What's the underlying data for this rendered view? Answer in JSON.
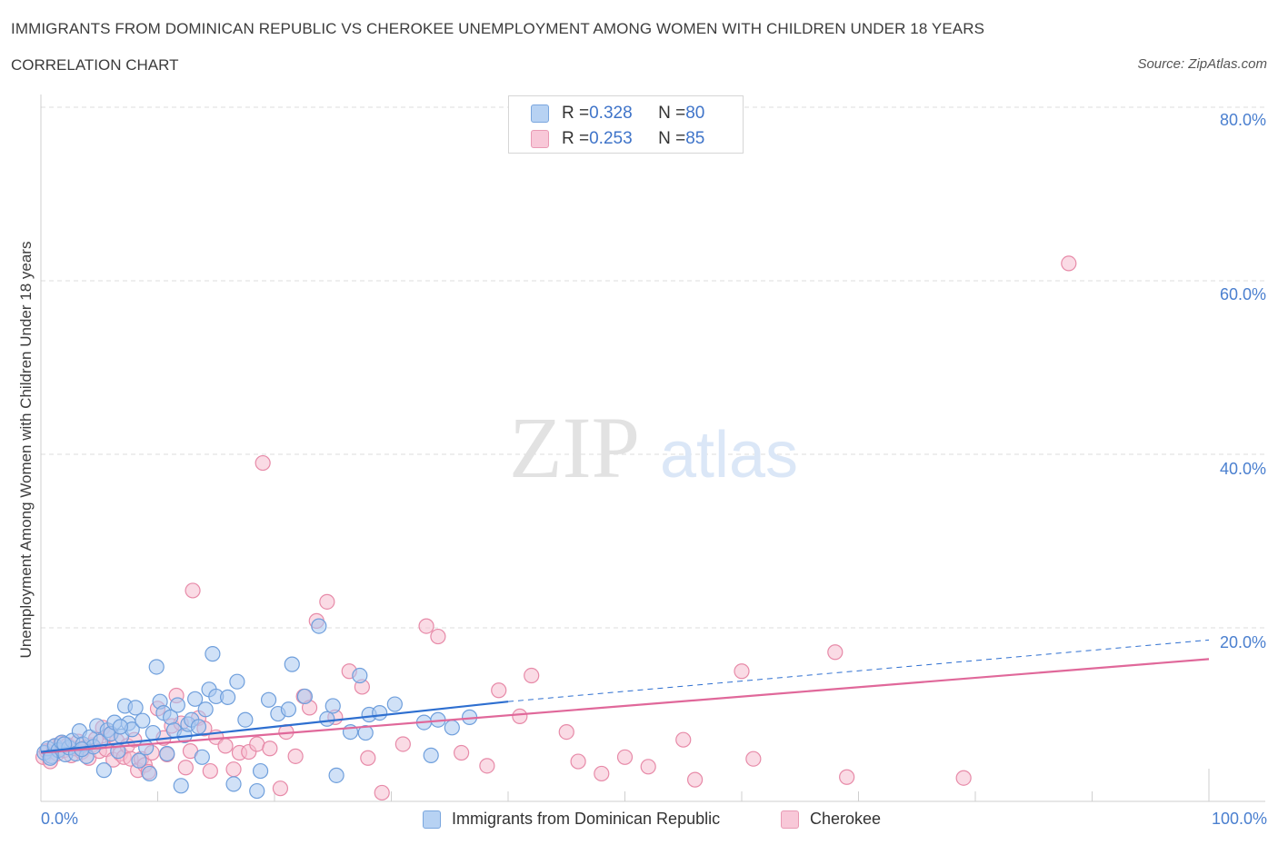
{
  "header": {
    "title": "IMMIGRANTS FROM DOMINICAN REPUBLIC VS CHEROKEE UNEMPLOYMENT AMONG WOMEN WITH CHILDREN UNDER 18 YEARS",
    "subtitle": "CORRELATION CHART",
    "source": "Source: ZipAtlas.com"
  },
  "watermark": {
    "zip": "ZIP",
    "atlas": "atlas"
  },
  "legend": {
    "rows": [
      {
        "r_label": "R = ",
        "r_value": "0.328",
        "n_label": "N = ",
        "n_value": "80"
      },
      {
        "r_label": "R = ",
        "r_value": "0.253",
        "n_label": "N = ",
        "n_value": "85"
      }
    ]
  },
  "colors": {
    "blue_fill": "#a9c8f0",
    "blue_stroke": "#6f9fdc",
    "blue_line": "#2e6fd0",
    "pink_fill": "#f6bdd0",
    "pink_stroke": "#e78aa8",
    "pink_line": "#e0689a",
    "tick_text": "#4a7fcf",
    "grid": "#dddddd"
  },
  "chart_data": {
    "type": "scatter",
    "title": "IMMIGRANTS FROM DOMINICAN REPUBLIC VS CHEROKEE UNEMPLOYMENT AMONG WOMEN WITH CHILDREN UNDER 18 YEARS",
    "subtitle": "CORRELATION CHART",
    "xlabel": "",
    "ylabel": "Unemployment Among Women with Children Under 18 years",
    "xlim": [
      0,
      100
    ],
    "ylim": [
      0,
      80
    ],
    "x_tick_labels": [
      "0.0%",
      "100.0%"
    ],
    "y_ticks": [
      20,
      40,
      60,
      80
    ],
    "y_tick_labels": [
      "20.0%",
      "40.0%",
      "60.0%",
      "80.0%"
    ],
    "grid": true,
    "legend_position": "top-center",
    "series": [
      {
        "name": "Immigrants from Dominican Republic",
        "color": "#a9c8f0",
        "r": 0.328,
        "n": 80,
        "trend": {
          "x0": 0,
          "y0": 5.7,
          "x1": 40,
          "y1": 11.5,
          "dashed_to_x": 100,
          "dashed_to_y": 18.6
        },
        "points": [
          [
            0.3,
            5.6
          ],
          [
            0.6,
            6.1
          ],
          [
            0.9,
            5.2
          ],
          [
            1.2,
            6.4
          ],
          [
            1.5,
            5.9
          ],
          [
            1.8,
            6.8
          ],
          [
            2.1,
            5.4
          ],
          [
            2.4,
            6.2
          ],
          [
            2.7,
            7.0
          ],
          [
            3.0,
            5.5
          ],
          [
            3.3,
            8.1
          ],
          [
            3.6,
            6.6
          ],
          [
            3.9,
            5.2
          ],
          [
            4.2,
            7.4
          ],
          [
            4.5,
            6.3
          ],
          [
            4.8,
            8.7
          ],
          [
            5.1,
            6.9
          ],
          [
            5.4,
            3.6
          ],
          [
            5.7,
            8.2
          ],
          [
            6.0,
            7.8
          ],
          [
            6.3,
            9.1
          ],
          [
            6.6,
            5.8
          ],
          [
            6.9,
            7.5
          ],
          [
            7.2,
            11.0
          ],
          [
            7.5,
            9.0
          ],
          [
            7.8,
            8.3
          ],
          [
            8.1,
            10.8
          ],
          [
            8.4,
            4.7
          ],
          [
            8.7,
            9.3
          ],
          [
            9.0,
            6.2
          ],
          [
            9.3,
            3.2
          ],
          [
            9.6,
            7.9
          ],
          [
            9.9,
            15.5
          ],
          [
            10.2,
            11.5
          ],
          [
            10.5,
            10.2
          ],
          [
            10.8,
            5.5
          ],
          [
            11.1,
            9.7
          ],
          [
            11.4,
            8.2
          ],
          [
            11.7,
            11.1
          ],
          [
            12.0,
            1.8
          ],
          [
            12.3,
            7.6
          ],
          [
            12.6,
            8.9
          ],
          [
            12.9,
            9.4
          ],
          [
            13.2,
            11.8
          ],
          [
            13.5,
            8.6
          ],
          [
            13.8,
            5.1
          ],
          [
            14.1,
            10.6
          ],
          [
            14.4,
            12.9
          ],
          [
            14.7,
            17.0
          ],
          [
            15.0,
            12.1
          ],
          [
            16.0,
            12.0
          ],
          [
            16.5,
            2.0
          ],
          [
            16.8,
            13.8
          ],
          [
            17.5,
            9.4
          ],
          [
            18.5,
            1.2
          ],
          [
            18.8,
            3.5
          ],
          [
            19.5,
            11.7
          ],
          [
            20.3,
            10.1
          ],
          [
            21.2,
            10.6
          ],
          [
            21.5,
            15.8
          ],
          [
            22.6,
            12.1
          ],
          [
            23.8,
            20.2
          ],
          [
            24.5,
            9.5
          ],
          [
            25.0,
            11.0
          ],
          [
            25.3,
            3.0
          ],
          [
            26.5,
            8.0
          ],
          [
            27.3,
            14.5
          ],
          [
            27.8,
            7.9
          ],
          [
            28.1,
            10.0
          ],
          [
            29.0,
            10.2
          ],
          [
            30.3,
            11.2
          ],
          [
            32.8,
            9.1
          ],
          [
            33.4,
            5.3
          ],
          [
            34.0,
            9.4
          ],
          [
            35.2,
            8.5
          ],
          [
            36.7,
            9.7
          ],
          [
            0.8,
            5.0
          ],
          [
            2.0,
            6.6
          ],
          [
            3.5,
            6.0
          ],
          [
            6.8,
            8.6
          ]
        ]
      },
      {
        "name": "Cherokee",
        "color": "#f6bdd0",
        "r": 0.253,
        "n": 85,
        "trend": {
          "x0": 0,
          "y0": 5.6,
          "x1": 100,
          "y1": 16.4
        },
        "points": [
          [
            0.2,
            5.1
          ],
          [
            0.5,
            5.8
          ],
          [
            0.8,
            4.6
          ],
          [
            1.1,
            6.3
          ],
          [
            1.4,
            5.5
          ],
          [
            1.7,
            6.7
          ],
          [
            2.0,
            5.9
          ],
          [
            2.3,
            6.5
          ],
          [
            2.6,
            5.3
          ],
          [
            2.9,
            6.1
          ],
          [
            3.2,
            6.9
          ],
          [
            3.5,
            5.7
          ],
          [
            3.8,
            6.2
          ],
          [
            4.1,
            5.0
          ],
          [
            4.4,
            6.5
          ],
          [
            4.7,
            7.2
          ],
          [
            5.0,
            5.8
          ],
          [
            5.3,
            8.5
          ],
          [
            5.6,
            6.0
          ],
          [
            5.9,
            7.7
          ],
          [
            6.2,
            4.8
          ],
          [
            6.5,
            7.0
          ],
          [
            6.8,
            5.5
          ],
          [
            7.1,
            5.1
          ],
          [
            7.4,
            6.4
          ],
          [
            7.7,
            4.9
          ],
          [
            8.0,
            7.1
          ],
          [
            8.3,
            3.6
          ],
          [
            8.6,
            4.9
          ],
          [
            8.9,
            4.2
          ],
          [
            9.2,
            3.4
          ],
          [
            9.5,
            5.6
          ],
          [
            10.0,
            10.7
          ],
          [
            10.5,
            7.3
          ],
          [
            10.8,
            5.4
          ],
          [
            11.2,
            8.7
          ],
          [
            11.6,
            12.2
          ],
          [
            12.0,
            9.0
          ],
          [
            12.4,
            3.9
          ],
          [
            12.8,
            5.8
          ],
          [
            13.0,
            24.3
          ],
          [
            13.5,
            9.6
          ],
          [
            14.0,
            8.4
          ],
          [
            14.5,
            3.5
          ],
          [
            15.0,
            7.4
          ],
          [
            15.8,
            6.4
          ],
          [
            16.5,
            3.7
          ],
          [
            17.0,
            5.6
          ],
          [
            17.8,
            5.7
          ],
          [
            18.5,
            6.6
          ],
          [
            19.0,
            39.0
          ],
          [
            19.6,
            6.1
          ],
          [
            20.5,
            1.5
          ],
          [
            21.0,
            8.0
          ],
          [
            21.8,
            5.2
          ],
          [
            22.5,
            12.1
          ],
          [
            23.0,
            10.8
          ],
          [
            23.6,
            20.8
          ],
          [
            24.5,
            23.0
          ],
          [
            25.2,
            9.7
          ],
          [
            26.4,
            15.0
          ],
          [
            27.5,
            13.2
          ],
          [
            28.0,
            5.0
          ],
          [
            29.2,
            1.0
          ],
          [
            31.0,
            6.6
          ],
          [
            33.0,
            20.2
          ],
          [
            34.0,
            19.0
          ],
          [
            36.0,
            5.6
          ],
          [
            38.2,
            4.1
          ],
          [
            39.2,
            12.8
          ],
          [
            41.0,
            9.8
          ],
          [
            42.0,
            14.5
          ],
          [
            45.0,
            8.0
          ],
          [
            46.0,
            4.6
          ],
          [
            48.0,
            3.2
          ],
          [
            50.0,
            5.1
          ],
          [
            52.0,
            4.0
          ],
          [
            55.0,
            7.1
          ],
          [
            56.0,
            2.5
          ],
          [
            60.0,
            15.0
          ],
          [
            61.0,
            4.9
          ],
          [
            68.0,
            17.2
          ],
          [
            69.0,
            2.8
          ],
          [
            79.0,
            2.7
          ],
          [
            88.0,
            62.0
          ]
        ]
      }
    ]
  }
}
